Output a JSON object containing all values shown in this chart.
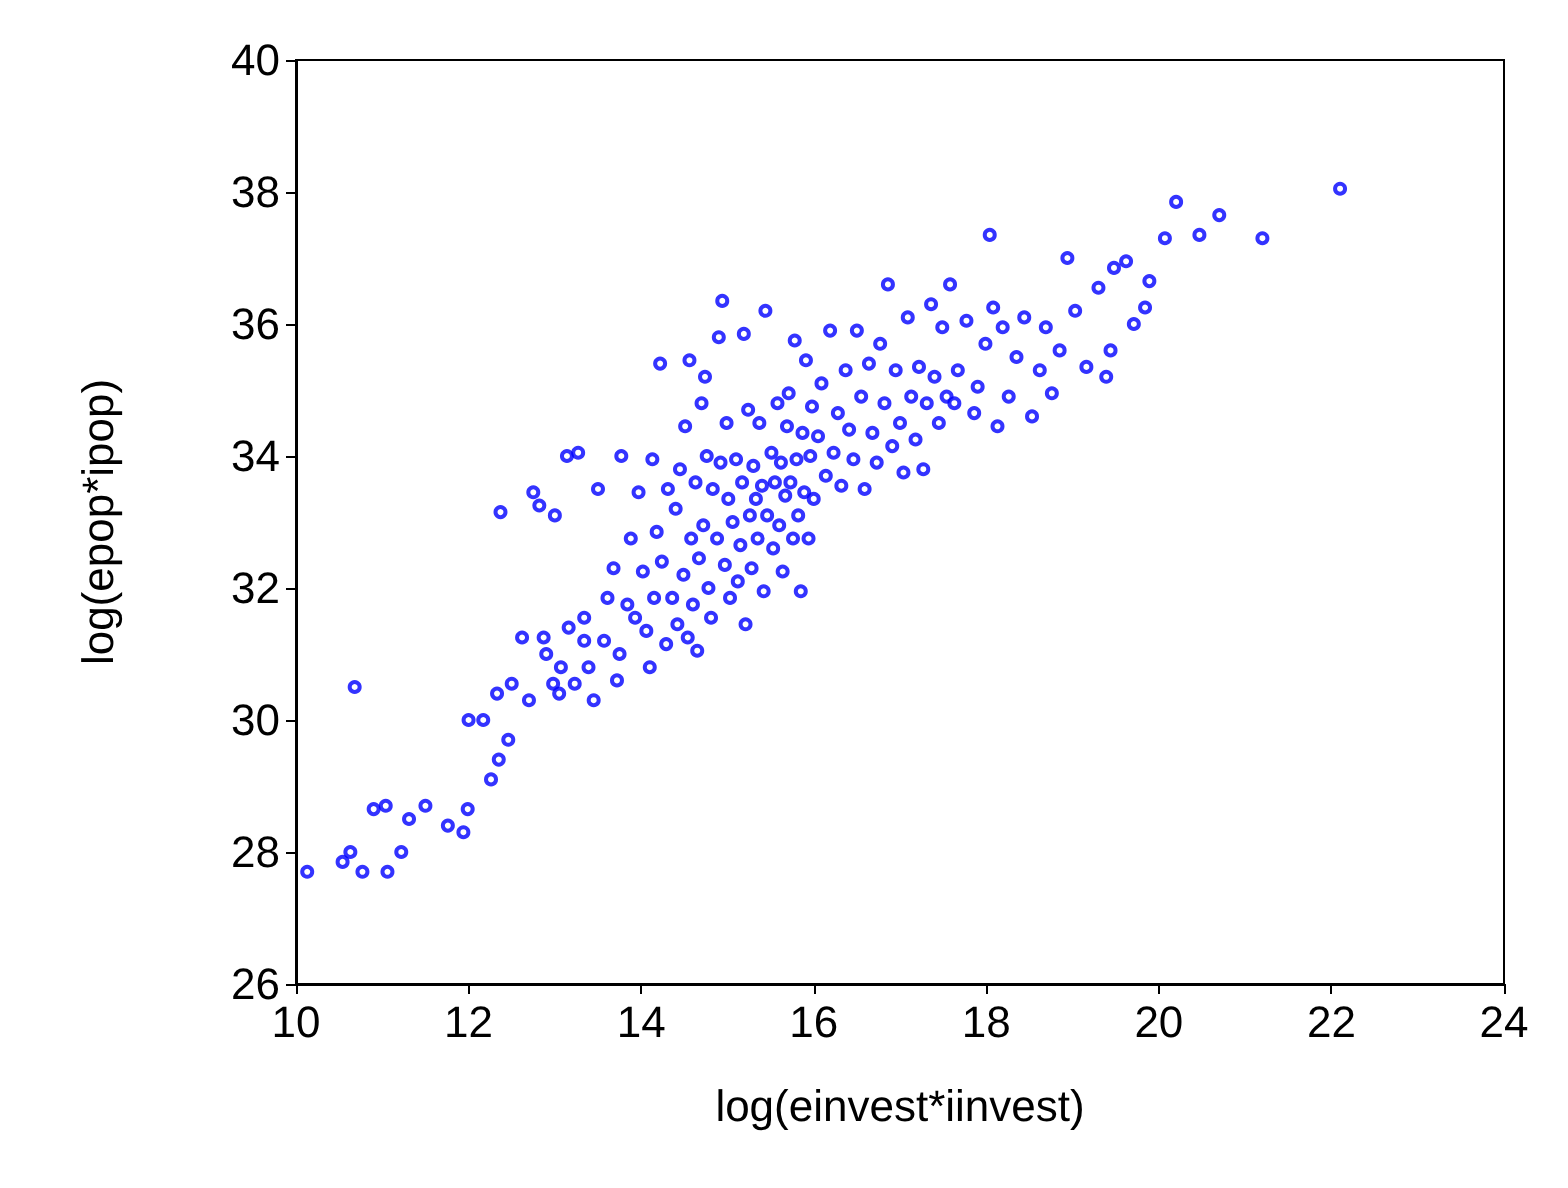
{
  "chart_data": {
    "type": "scatter",
    "xlabel": "log(einvest*iinvest)",
    "ylabel": "log(epop*ipop)",
    "xlim": [
      10,
      24
    ],
    "xticks": [
      10,
      12,
      14,
      16,
      18,
      20,
      22,
      24
    ],
    "ylim": [
      26,
      40
    ],
    "yticks": [
      26,
      28,
      30,
      32,
      34,
      36,
      38,
      40
    ],
    "grid": false,
    "marker": "circle",
    "series": [
      {
        "color": "#0000ff",
        "x": [
          10.13,
          10.54,
          10.63,
          10.68,
          10.77,
          10.9,
          11.04,
          11.06,
          11.22,
          11.31,
          11.5,
          11.76,
          11.94,
          11.99,
          12.0,
          12.17,
          12.26,
          12.33,
          12.35,
          12.37,
          12.46,
          12.5,
          12.62,
          12.7,
          12.75,
          12.82,
          12.87,
          12.9,
          12.98,
          13.0,
          13.05,
          13.07,
          13.14,
          13.16,
          13.23,
          13.27,
          13.34,
          13.34,
          13.39,
          13.45,
          13.5,
          13.57,
          13.61,
          13.68,
          13.72,
          13.75,
          13.77,
          13.84,
          13.88,
          13.93,
          13.97,
          14.02,
          14.06,
          14.1,
          14.13,
          14.15,
          14.18,
          14.22,
          14.24,
          14.29,
          14.31,
          14.36,
          14.4,
          14.42,
          14.45,
          14.49,
          14.51,
          14.54,
          14.56,
          14.58,
          14.6,
          14.63,
          14.65,
          14.67,
          14.7,
          14.72,
          14.74,
          14.76,
          14.78,
          14.81,
          14.83,
          14.88,
          14.9,
          14.92,
          14.94,
          14.97,
          14.99,
          15.01,
          15.03,
          15.06,
          15.1,
          15.12,
          15.15,
          15.17,
          15.19,
          15.21,
          15.24,
          15.26,
          15.28,
          15.3,
          15.33,
          15.35,
          15.37,
          15.4,
          15.42,
          15.44,
          15.46,
          15.51,
          15.53,
          15.55,
          15.58,
          15.6,
          15.62,
          15.64,
          15.67,
          15.69,
          15.71,
          15.73,
          15.76,
          15.78,
          15.8,
          15.82,
          15.85,
          15.87,
          15.89,
          15.91,
          15.94,
          15.96,
          15.98,
          16.0,
          16.05,
          16.09,
          16.14,
          16.19,
          16.23,
          16.28,
          16.32,
          16.37,
          16.41,
          16.46,
          16.5,
          16.55,
          16.59,
          16.64,
          16.68,
          16.73,
          16.77,
          16.82,
          16.86,
          16.91,
          16.95,
          17.0,
          17.04,
          17.09,
          17.13,
          17.18,
          17.22,
          17.27,
          17.31,
          17.36,
          17.4,
          17.45,
          17.49,
          17.54,
          17.58,
          17.63,
          17.67,
          17.77,
          17.86,
          17.9,
          17.99,
          18.04,
          18.08,
          18.13,
          18.19,
          18.26,
          18.35,
          18.44,
          18.53,
          18.62,
          18.69,
          18.76,
          18.85,
          18.94,
          19.03,
          19.16,
          19.3,
          19.39,
          19.44,
          19.48,
          19.62,
          19.71,
          19.84,
          19.89,
          20.07,
          20.2,
          20.47,
          20.7,
          21.2,
          22.1
        ],
        "values": [
          27.7,
          27.85,
          28.0,
          30.5,
          27.7,
          28.65,
          28.7,
          27.7,
          28.0,
          28.5,
          28.7,
          28.4,
          28.3,
          28.65,
          30.0,
          30.0,
          29.1,
          30.4,
          29.4,
          33.15,
          29.7,
          30.55,
          31.25,
          30.3,
          33.45,
          33.25,
          31.25,
          31.0,
          30.55,
          33.1,
          30.4,
          30.8,
          34.0,
          31.4,
          30.55,
          34.05,
          31.2,
          31.55,
          30.8,
          30.3,
          33.5,
          31.2,
          31.85,
          32.3,
          30.6,
          31.0,
          34.0,
          31.75,
          32.75,
          31.55,
          33.45,
          32.25,
          31.35,
          30.8,
          33.95,
          31.85,
          32.85,
          35.4,
          32.4,
          31.15,
          33.5,
          31.85,
          33.2,
          31.45,
          33.8,
          32.2,
          34.45,
          31.25,
          35.45,
          32.75,
          31.75,
          33.6,
          31.05,
          32.45,
          34.8,
          32.95,
          35.2,
          34.0,
          32.0,
          31.55,
          33.5,
          32.75,
          35.8,
          33.9,
          36.35,
          32.35,
          34.5,
          33.35,
          31.85,
          33.0,
          33.95,
          32.1,
          32.65,
          33.6,
          35.85,
          31.45,
          34.7,
          33.1,
          32.3,
          33.85,
          33.35,
          32.75,
          34.5,
          33.55,
          31.95,
          36.2,
          33.1,
          34.05,
          32.6,
          33.6,
          34.8,
          32.95,
          33.9,
          32.25,
          33.4,
          34.45,
          34.95,
          33.6,
          32.75,
          35.75,
          33.95,
          33.1,
          31.95,
          34.35,
          33.45,
          35.45,
          32.75,
          34.0,
          34.75,
          33.35,
          34.3,
          35.1,
          33.7,
          35.9,
          34.05,
          34.65,
          33.55,
          35.3,
          34.4,
          33.95,
          35.9,
          34.9,
          33.5,
          35.4,
          34.35,
          33.9,
          35.7,
          34.8,
          36.6,
          34.15,
          35.3,
          34.5,
          33.75,
          36.1,
          34.9,
          34.25,
          35.35,
          33.8,
          34.8,
          36.3,
          35.2,
          34.5,
          35.95,
          34.9,
          36.6,
          34.8,
          35.3,
          36.05,
          34.65,
          35.05,
          35.7,
          37.35,
          36.25,
          34.45,
          35.95,
          34.9,
          35.5,
          36.1,
          34.6,
          35.3,
          35.95,
          34.95,
          35.6,
          37.0,
          36.2,
          35.35,
          36.55,
          35.2,
          35.6,
          36.85,
          36.95,
          36.0,
          36.25,
          36.65,
          37.3,
          37.85,
          37.35,
          37.65,
          37.3,
          38.05
        ]
      }
    ]
  }
}
